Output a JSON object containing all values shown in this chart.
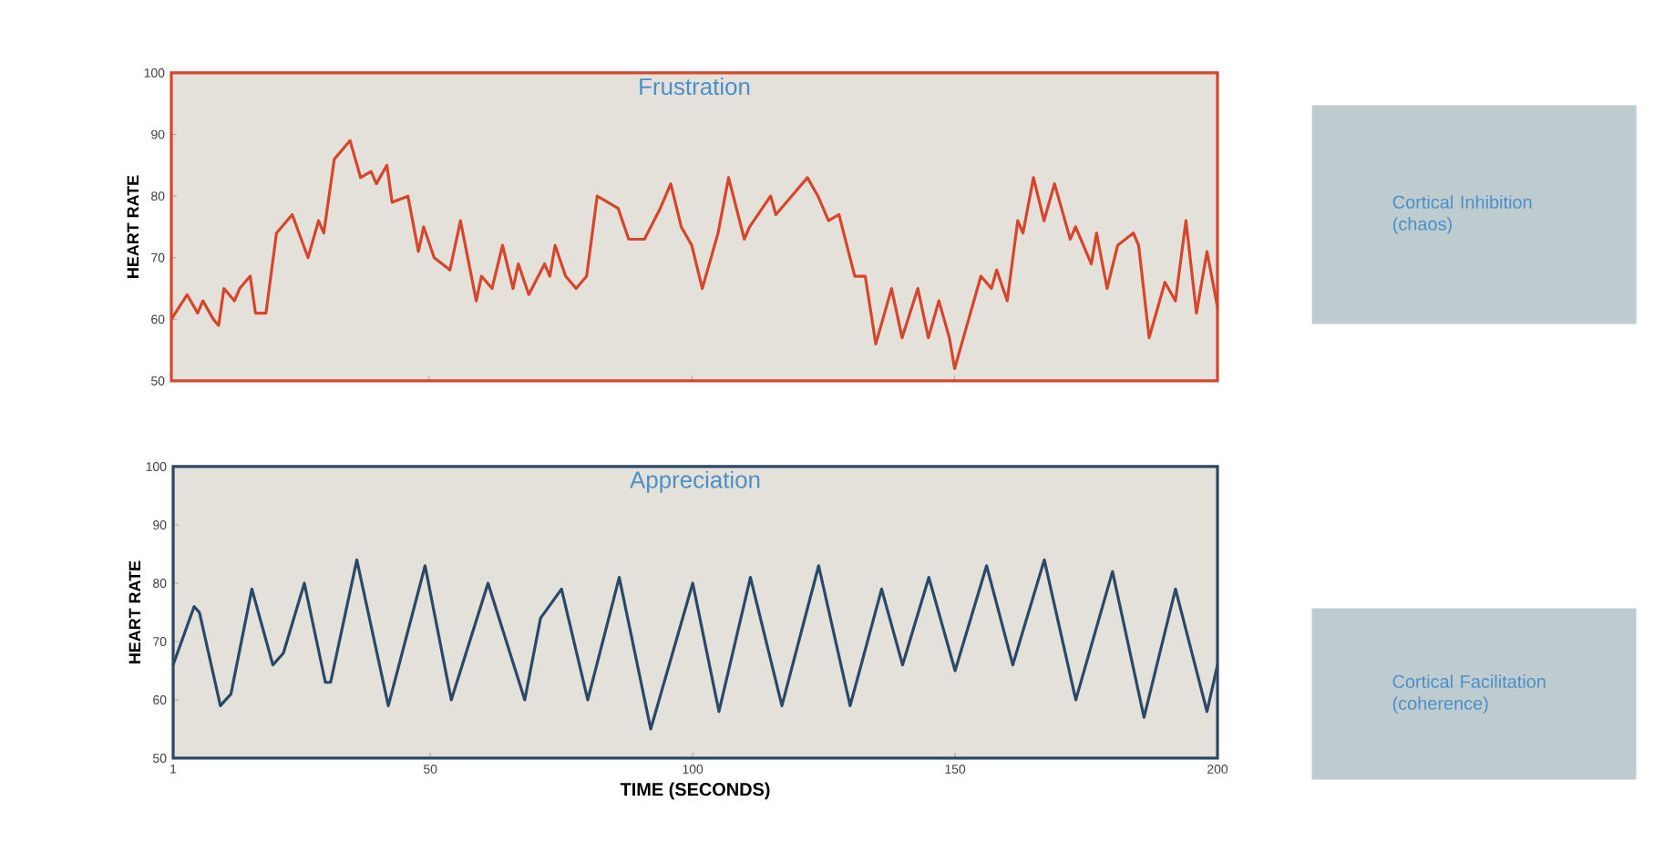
{
  "chart_data": [
    {
      "type": "line",
      "title": "Frustration",
      "ylabel": "HEART RATE",
      "xlim": [
        1,
        200
      ],
      "xticks": [
        1,
        50,
        100,
        150,
        200
      ],
      "ylim": [
        50,
        100
      ],
      "yticks": [
        50,
        60,
        70,
        80,
        90,
        100
      ],
      "tick_labels": "y",
      "annotations": [
        "Cortical Inhibition (chaos)"
      ],
      "series": [
        {
          "color": "#d5462c",
          "x": [
            1,
            4,
            6,
            7,
            9,
            10,
            11,
            13,
            14,
            16,
            17,
            19,
            21,
            24,
            27,
            29,
            30,
            32,
            35,
            37,
            39,
            40,
            42,
            43,
            46,
            48,
            49,
            51,
            54,
            56,
            59,
            60,
            62,
            64,
            66,
            67,
            69,
            72,
            73,
            74,
            76,
            78,
            80,
            82,
            86,
            88,
            91,
            94,
            96,
            98,
            100,
            102,
            105,
            107,
            110,
            111,
            115,
            116,
            118,
            122,
            124,
            126,
            128,
            131,
            133,
            135,
            138,
            140,
            143,
            145,
            147,
            149,
            150,
            152,
            155,
            157,
            158,
            160,
            162,
            163,
            165,
            167,
            169,
            172,
            173,
            176,
            177,
            179,
            181,
            184,
            185,
            187,
            190,
            192,
            194,
            196,
            198,
            200
          ],
          "values": [
            60,
            64,
            61,
            63,
            60,
            59,
            65,
            63,
            65,
            67,
            61,
            61,
            74,
            77,
            70,
            76,
            74,
            86,
            89,
            83,
            84,
            82,
            85,
            79,
            80,
            71,
            75,
            70,
            68,
            76,
            63,
            67,
            65,
            72,
            65,
            69,
            64,
            69,
            67,
            72,
            67,
            65,
            67,
            80,
            78,
            73,
            73,
            78,
            82,
            75,
            72,
            65,
            74,
            83,
            73,
            75,
            80,
            77,
            79,
            83,
            80,
            76,
            77,
            67,
            67,
            56,
            65,
            57,
            65,
            57,
            63,
            57,
            52,
            58,
            67,
            65,
            68,
            63,
            76,
            74,
            83,
            76,
            82,
            73,
            75,
            69,
            74,
            65,
            72,
            74,
            72,
            57,
            66,
            63,
            76,
            61,
            71,
            62
          ]
        }
      ]
    },
    {
      "type": "line",
      "title": "Appreciation",
      "xlabel": "TIME (SECONDS)",
      "ylabel": "HEART RATE",
      "xlim": [
        1,
        200
      ],
      "xticks": [
        1,
        50,
        100,
        150,
        200
      ],
      "ylim": [
        50,
        100
      ],
      "yticks": [
        50,
        60,
        70,
        80,
        90,
        100
      ],
      "annotations": [
        "Cortical Facilitation (coherence)"
      ],
      "series": [
        {
          "color": "#2c4868",
          "x": [
            1,
            5,
            6,
            10,
            12,
            16,
            20,
            22,
            26,
            30,
            31,
            36,
            42,
            49,
            54,
            61,
            68,
            71,
            75,
            80,
            86,
            92,
            100,
            105,
            111,
            117,
            124,
            130,
            136,
            140,
            145,
            150,
            156,
            161,
            167,
            173,
            180,
            186,
            192,
            198,
            200
          ],
          "values": [
            66,
            76,
            75,
            59,
            61,
            79,
            66,
            68,
            80,
            63,
            63,
            84,
            59,
            83,
            60,
            80,
            60,
            74,
            79,
            60,
            81,
            55,
            80,
            58,
            81,
            59,
            83,
            59,
            79,
            66,
            81,
            65,
            83,
            66,
            84,
            60,
            82,
            57,
            79,
            58,
            66
          ]
        }
      ]
    }
  ]
}
